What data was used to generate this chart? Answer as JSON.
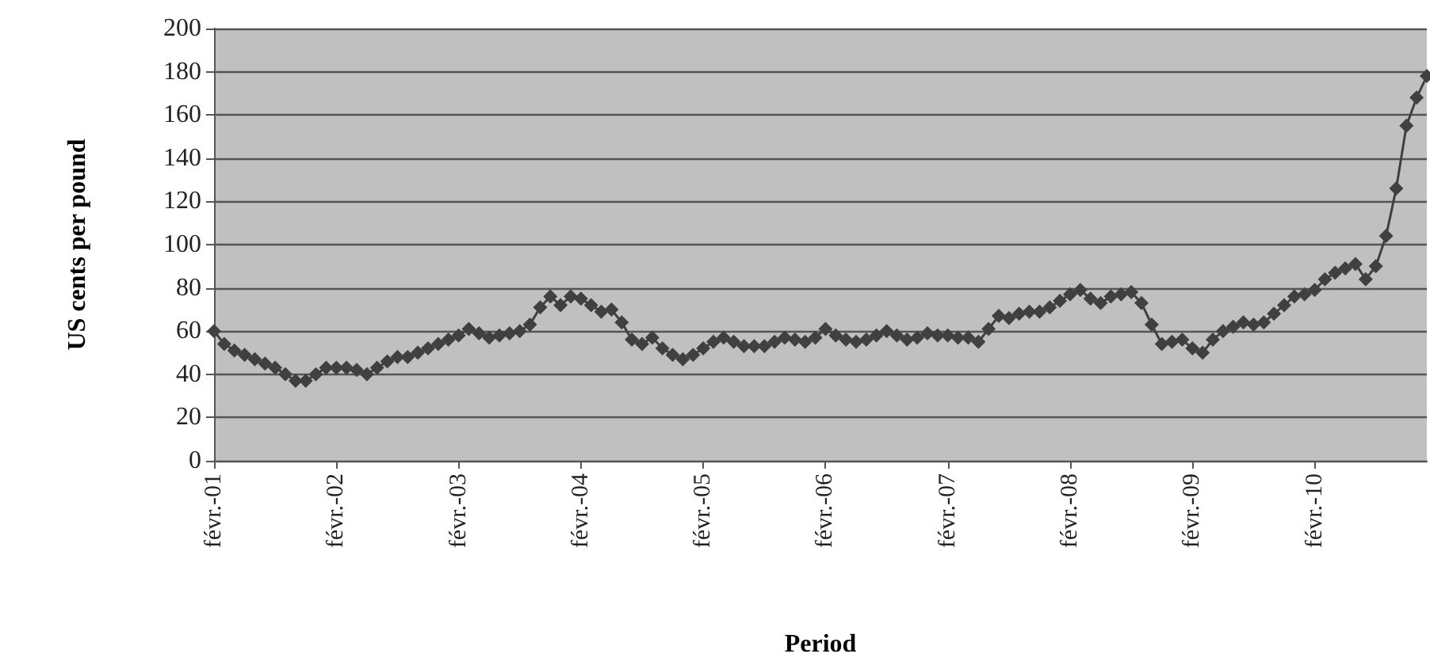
{
  "chart_data": {
    "type": "line",
    "xlabel": "Period",
    "ylabel": "US cents per pound",
    "categories": [
      "févr.-01",
      null,
      null,
      null,
      null,
      null,
      null,
      null,
      null,
      null,
      null,
      null,
      "févr.-02",
      null,
      null,
      null,
      null,
      null,
      null,
      null,
      null,
      null,
      null,
      null,
      "févr.-03",
      null,
      null,
      null,
      null,
      null,
      null,
      null,
      null,
      null,
      null,
      null,
      "févr.-04",
      null,
      null,
      null,
      null,
      null,
      null,
      null,
      null,
      null,
      null,
      null,
      "févr.-05",
      null,
      null,
      null,
      null,
      null,
      null,
      null,
      null,
      null,
      null,
      null,
      "févr.-06",
      null,
      null,
      null,
      null,
      null,
      null,
      null,
      null,
      null,
      null,
      null,
      "févr.-07",
      null,
      null,
      null,
      null,
      null,
      null,
      null,
      null,
      null,
      null,
      null,
      "févr.-08",
      null,
      null,
      null,
      null,
      null,
      null,
      null,
      null,
      null,
      null,
      null,
      "févr.-09",
      null,
      null,
      null,
      null,
      null,
      null,
      null,
      null,
      null,
      null,
      null,
      "févr.-10",
      null,
      null,
      null,
      null,
      null,
      null,
      null,
      null,
      null,
      null,
      null
    ],
    "series": [
      {
        "color": "#404040",
        "values": [
          60,
          54,
          51,
          49,
          47,
          45,
          43,
          40,
          37,
          37,
          40,
          43,
          43,
          43,
          42,
          40,
          43,
          46,
          48,
          48,
          50,
          52,
          54,
          56,
          58,
          61,
          59,
          57,
          58,
          59,
          60,
          63,
          71,
          76,
          72,
          76,
          75,
          72,
          69,
          70,
          64,
          56,
          54,
          57,
          52,
          49,
          47,
          49,
          52,
          55,
          57,
          55,
          53,
          53,
          53,
          55,
          57,
          56,
          55,
          57,
          61,
          58,
          56,
          55,
          56,
          58,
          60,
          58,
          56,
          57,
          59,
          58,
          58,
          57,
          57,
          55,
          61,
          67,
          66,
          68,
          69,
          69,
          71,
          74,
          77,
          79,
          75,
          73,
          76,
          77,
          78,
          73,
          63,
          54,
          55,
          56,
          52,
          50,
          56,
          60,
          62,
          64,
          63,
          64,
          68,
          72,
          76,
          77,
          79,
          84,
          87,
          89,
          91,
          84,
          90,
          104,
          126,
          155,
          168,
          178
        ]
      }
    ],
    "ylim": [
      0,
      200
    ],
    "yticks": [
      0,
      20,
      40,
      60,
      80,
      100,
      120,
      140,
      160,
      180,
      200
    ],
    "grid": "y",
    "marker": "diamond",
    "line_style": "solid"
  }
}
